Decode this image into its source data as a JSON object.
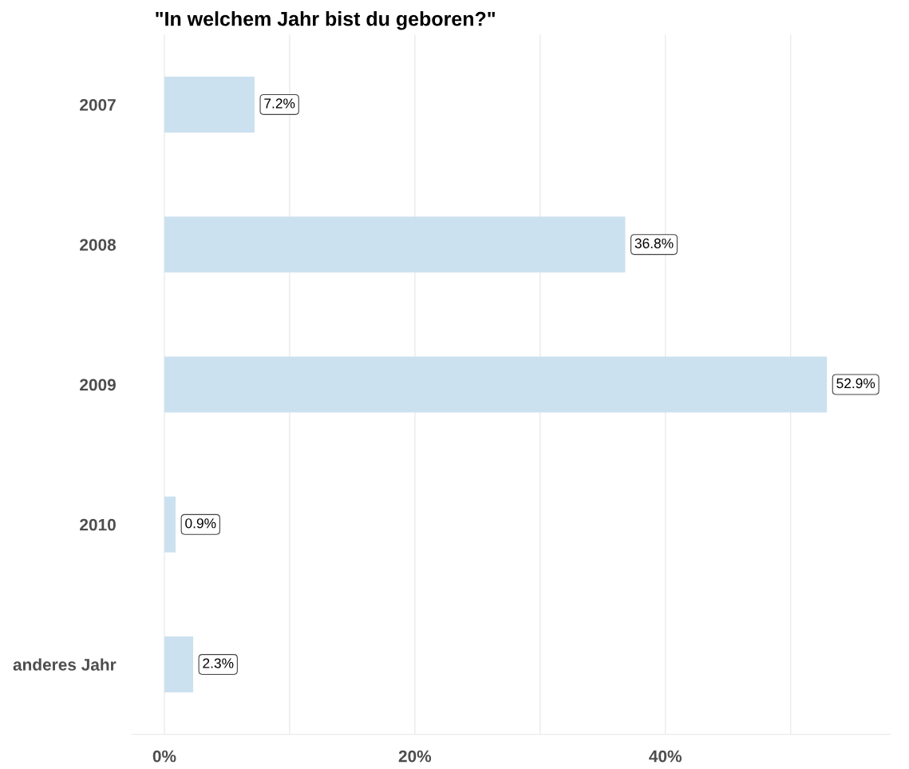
{
  "chart_data": {
    "type": "bar",
    "orientation": "horizontal",
    "title": "\"In welchem Jahr bist du geboren?\"",
    "categories": [
      "2007",
      "2008",
      "2009",
      "2010",
      "anderes Jahr"
    ],
    "values": [
      7.2,
      36.8,
      52.9,
      0.9,
      2.3
    ],
    "value_labels": [
      "7.2%",
      "36.8%",
      "52.9%",
      "0.9%",
      "2.3%"
    ],
    "color": "#cce1ef",
    "xlim": [
      -2.6,
      58
    ],
    "xticks": [
      {
        "value": 0,
        "label": "0%"
      },
      {
        "value": 10,
        "label": null
      },
      {
        "value": 20,
        "label": "20%"
      },
      {
        "value": 30,
        "label": null
      },
      {
        "value": 40,
        "label": "40%"
      },
      {
        "value": 50,
        "label": null
      }
    ],
    "grid": "x"
  }
}
